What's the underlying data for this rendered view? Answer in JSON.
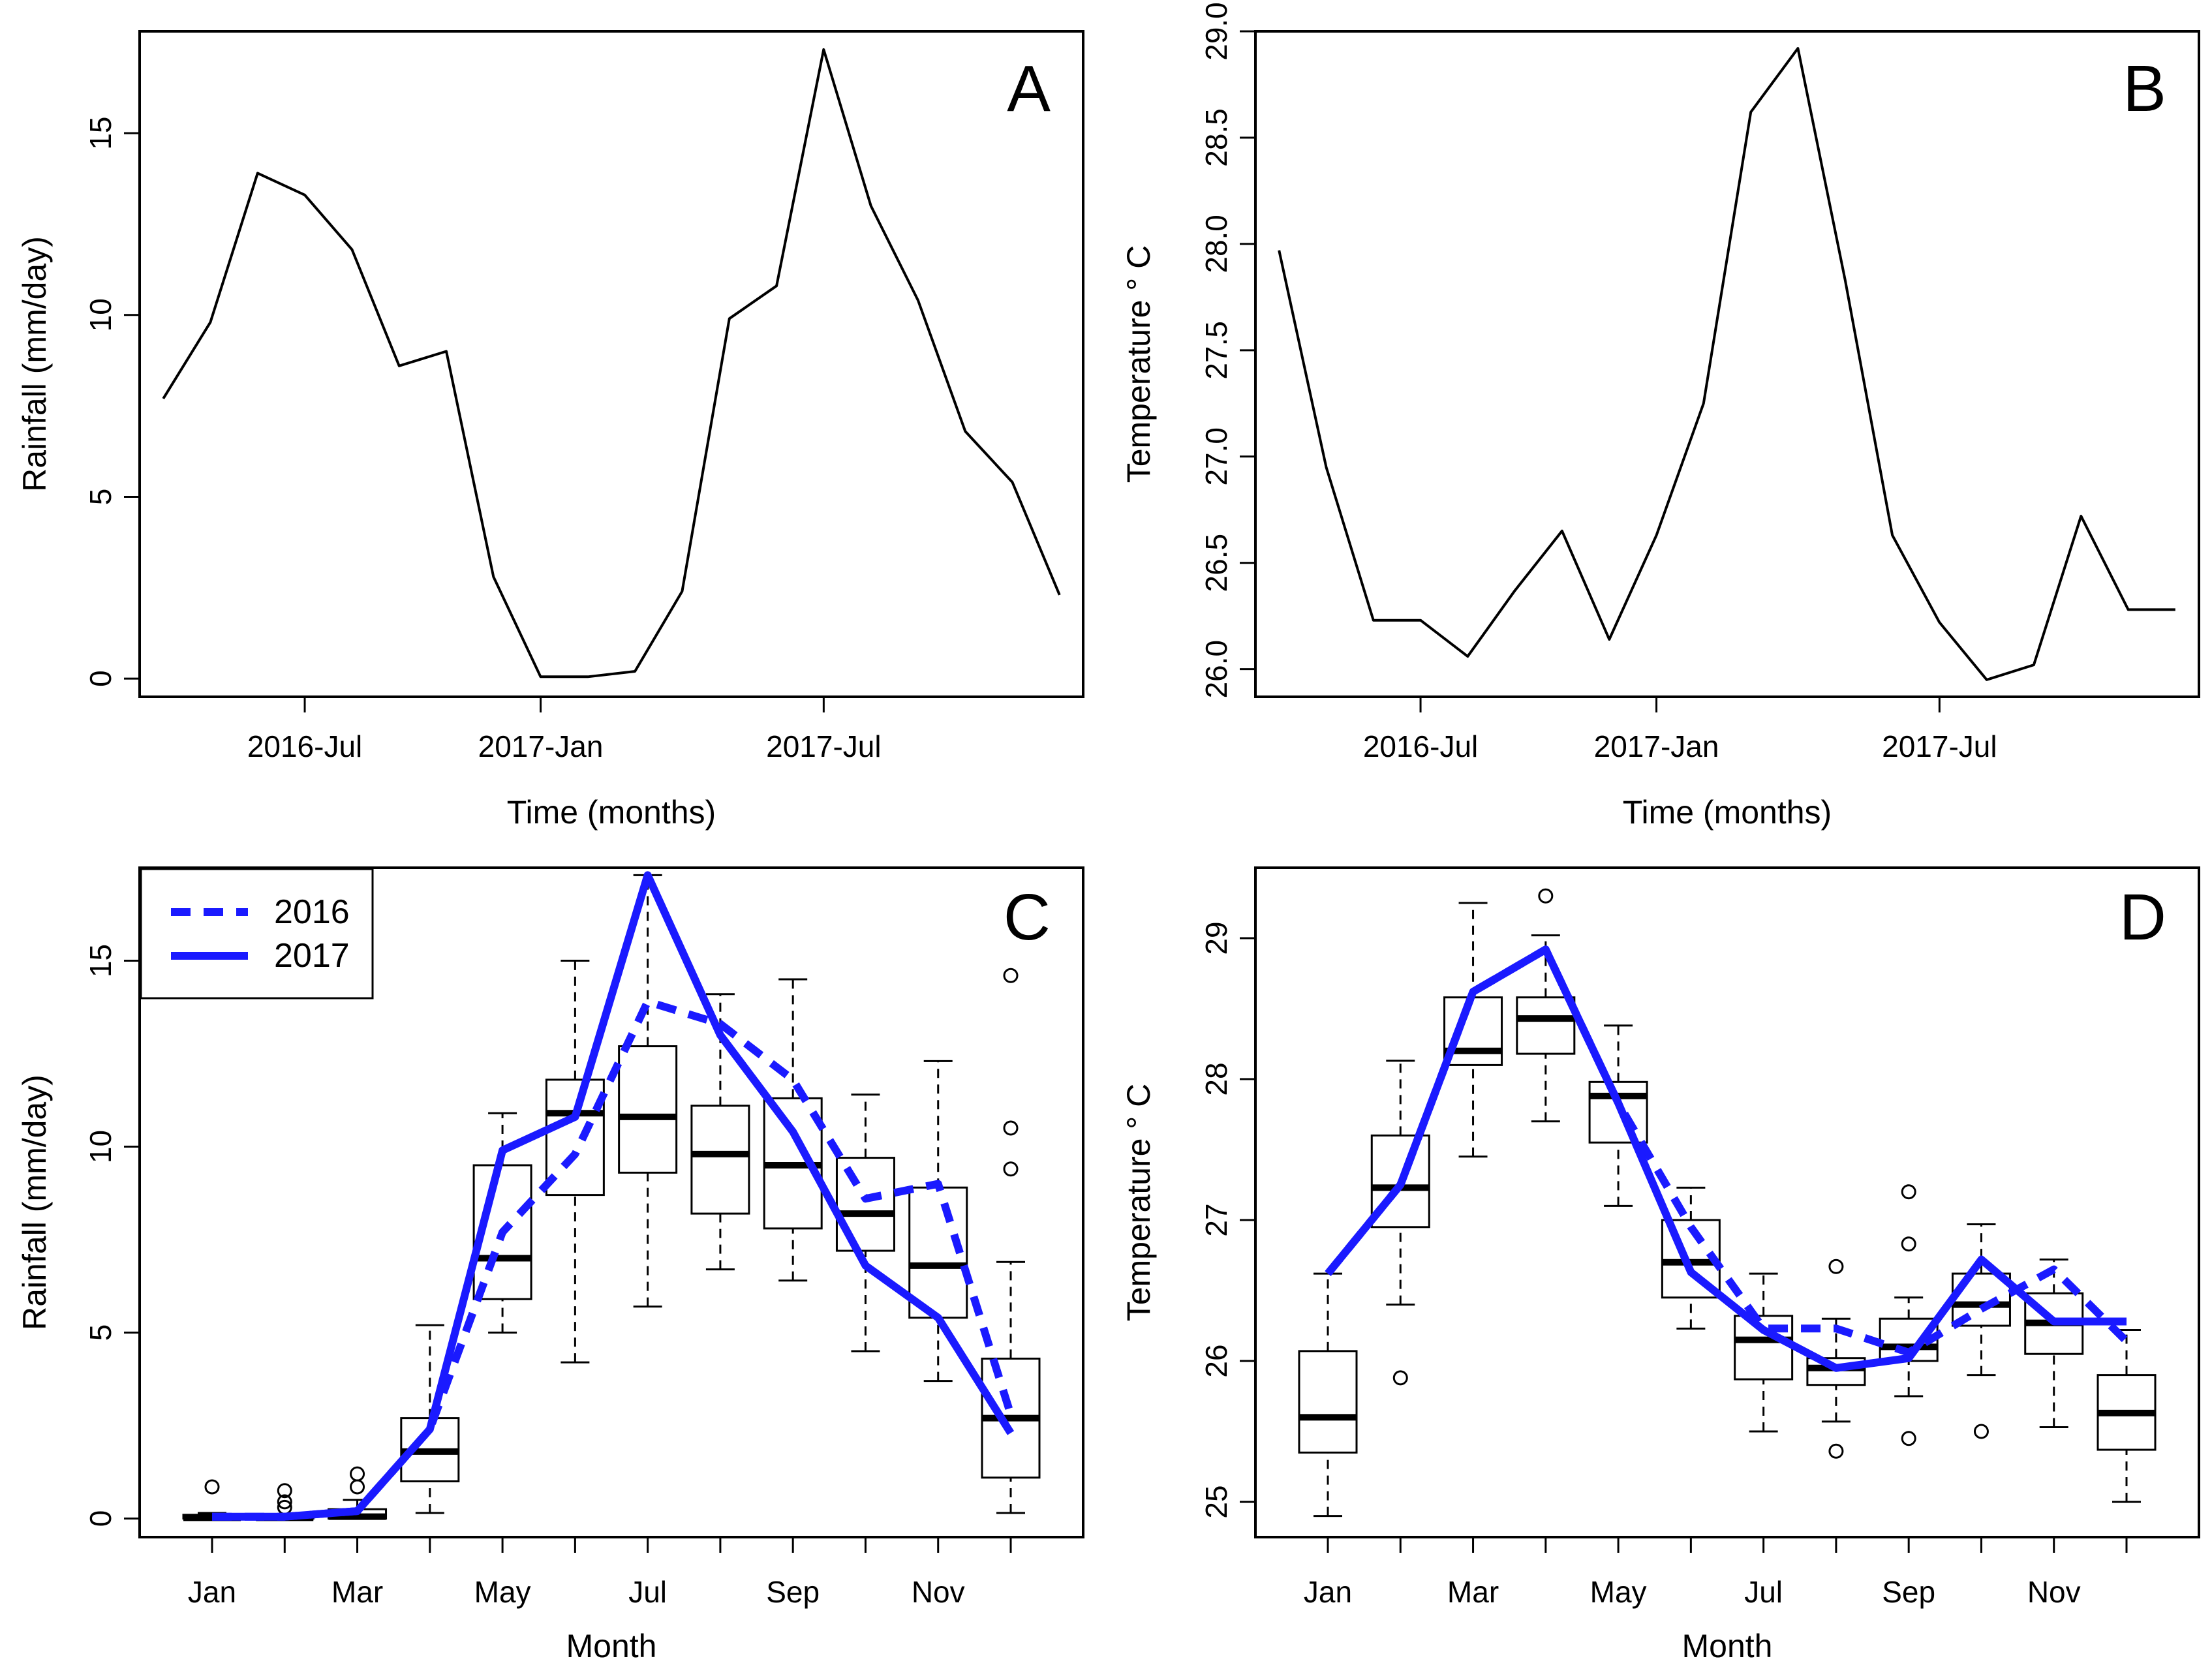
{
  "figure_labels": {
    "a": "A",
    "b": "B",
    "c": "C",
    "d": "D"
  },
  "colors": {
    "axis": "#000000",
    "series_blue": "#1a1aff",
    "box": "#000000"
  },
  "chart_data": [
    {
      "id": "A",
      "type": "line",
      "xlabel": "Time (months)",
      "ylabel": "Rainfall (mm/day)",
      "x_ticks": [
        {
          "label": "2016-Jul",
          "index": 3
        },
        {
          "label": "2017-Jan",
          "index": 8
        },
        {
          "label": "2017-Jul",
          "index": 14
        }
      ],
      "y_ticks": [
        "0",
        "5",
        "10",
        "15"
      ],
      "xlim": [
        -0.5,
        19.5
      ],
      "ylim": [
        -0.5,
        17.8
      ],
      "series": [
        {
          "name": "Rainfall",
          "values": [
            7.7,
            9.8,
            13.9,
            13.3,
            11.8,
            8.6,
            9.0,
            2.8,
            0.05,
            0.05,
            0.2,
            2.4,
            9.9,
            10.8,
            17.3,
            13.0,
            10.4,
            6.8,
            5.4,
            2.3
          ]
        }
      ]
    },
    {
      "id": "B",
      "type": "line",
      "xlabel": "Time (months)",
      "ylabel": "Temperature ° C",
      "x_ticks": [
        {
          "label": "2016-Jul",
          "index": 3
        },
        {
          "label": "2017-Jan",
          "index": 8
        },
        {
          "label": "2017-Jul",
          "index": 14
        }
      ],
      "y_ticks": [
        "26.0",
        "26.5",
        "27.0",
        "27.5",
        "28.0",
        "28.5",
        "29.0"
      ],
      "xlim": [
        -0.5,
        19.5
      ],
      "ylim": [
        25.87,
        29.0
      ],
      "series": [
        {
          "name": "Temperature",
          "values": [
            27.97,
            26.95,
            26.23,
            26.23,
            26.06,
            26.37,
            26.65,
            26.14,
            26.63,
            27.25,
            28.62,
            28.92,
            27.83,
            26.63,
            26.22,
            25.95,
            26.02,
            26.72,
            26.28,
            26.28
          ]
        }
      ]
    },
    {
      "id": "C",
      "type": "box",
      "xlabel": "Month",
      "ylabel": "Rainfall (mm/day)",
      "x_tick_labels": [
        "Jan",
        "",
        "Mar",
        "",
        "May",
        "",
        "Jul",
        "",
        "Sep",
        "",
        "Nov",
        ""
      ],
      "y_ticks": [
        "0",
        "5",
        "10",
        "15"
      ],
      "ylim": [
        -0.5,
        17.5
      ],
      "legend": [
        "2016",
        "2017"
      ],
      "boxes": [
        {
          "min": 0,
          "q1": 0,
          "med": 0.02,
          "q3": 0.1,
          "max": 0.15,
          "out": [
            0.85
          ]
        },
        {
          "min": 0,
          "q1": 0,
          "med": 0.02,
          "q3": 0.05,
          "max": 0.1,
          "out": [
            0.3,
            0.45,
            0.75
          ]
        },
        {
          "min": 0,
          "q1": 0,
          "med": 0.05,
          "q3": 0.25,
          "max": 0.5,
          "out": [
            0.85,
            1.2
          ]
        },
        {
          "min": 0.15,
          "q1": 1.0,
          "med": 1.8,
          "q3": 2.7,
          "max": 5.2,
          "out": []
        },
        {
          "min": 5.0,
          "q1": 5.9,
          "med": 7.0,
          "q3": 9.5,
          "max": 10.9,
          "out": []
        },
        {
          "min": 4.2,
          "q1": 8.7,
          "med": 10.9,
          "q3": 11.8,
          "max": 15.0,
          "out": []
        },
        {
          "min": 5.7,
          "q1": 9.3,
          "med": 10.8,
          "q3": 12.7,
          "max": 17.3,
          "out": []
        },
        {
          "min": 6.7,
          "q1": 8.2,
          "med": 9.8,
          "q3": 11.1,
          "max": 14.1,
          "out": []
        },
        {
          "min": 6.4,
          "q1": 7.8,
          "med": 9.5,
          "q3": 11.3,
          "max": 14.5,
          "out": []
        },
        {
          "min": 4.5,
          "q1": 7.2,
          "med": 8.2,
          "q3": 9.7,
          "max": 11.4,
          "out": []
        },
        {
          "min": 3.7,
          "q1": 5.4,
          "med": 6.8,
          "q3": 8.9,
          "max": 12.3,
          "out": []
        },
        {
          "min": 0.15,
          "q1": 1.1,
          "med": 2.7,
          "q3": 4.3,
          "max": 6.9,
          "out": [
            9.4,
            10.5,
            14.6
          ]
        }
      ],
      "series": [
        {
          "name": "2016",
          "style": "dashed",
          "values": [
            0.05,
            0.05,
            0.2,
            2.4,
            7.7,
            9.8,
            13.9,
            13.3,
            11.8,
            8.6,
            9.0,
            2.8
          ]
        },
        {
          "name": "2017",
          "style": "solid",
          "values": [
            0.05,
            0.05,
            0.2,
            2.4,
            9.9,
            10.8,
            17.3,
            13.0,
            10.4,
            6.8,
            5.4,
            2.3
          ]
        }
      ]
    },
    {
      "id": "D",
      "type": "box",
      "xlabel": "Month",
      "ylabel": "Temperature ° C",
      "x_tick_labels": [
        "Jan",
        "",
        "Mar",
        "",
        "May",
        "",
        "Jul",
        "",
        "Sep",
        "",
        "Nov",
        ""
      ],
      "y_ticks": [
        "25",
        "26",
        "27",
        "28",
        "29"
      ],
      "ylim": [
        24.75,
        29.5
      ],
      "boxes": [
        {
          "min": 24.9,
          "q1": 25.35,
          "med": 25.6,
          "q3": 26.07,
          "max": 26.62,
          "out": []
        },
        {
          "min": 26.4,
          "q1": 26.95,
          "med": 27.23,
          "q3": 27.6,
          "max": 28.13,
          "out": [
            25.88
          ]
        },
        {
          "min": 27.45,
          "q1": 28.1,
          "med": 28.2,
          "q3": 28.58,
          "max": 29.25,
          "out": []
        },
        {
          "min": 27.7,
          "q1": 28.18,
          "med": 28.43,
          "q3": 28.58,
          "max": 29.02,
          "out": [
            29.3
          ]
        },
        {
          "min": 27.1,
          "q1": 27.55,
          "med": 27.88,
          "q3": 27.98,
          "max": 28.38,
          "out": []
        },
        {
          "min": 26.23,
          "q1": 26.45,
          "med": 26.7,
          "q3": 27.0,
          "max": 27.23,
          "out": []
        },
        {
          "min": 25.5,
          "q1": 25.87,
          "med": 26.15,
          "q3": 26.32,
          "max": 26.62,
          "out": []
        },
        {
          "min": 25.57,
          "q1": 25.83,
          "med": 25.95,
          "q3": 26.02,
          "max": 26.3,
          "out": [
            25.36,
            26.67
          ]
        },
        {
          "min": 25.75,
          "q1": 26.0,
          "med": 26.1,
          "q3": 26.3,
          "max": 26.45,
          "out": [
            25.45,
            26.83,
            27.2
          ]
        },
        {
          "min": 25.9,
          "q1": 26.25,
          "med": 26.4,
          "q3": 26.62,
          "max": 26.97,
          "out": [
            25.5
          ]
        },
        {
          "min": 25.53,
          "q1": 26.05,
          "med": 26.27,
          "q3": 26.48,
          "max": 26.72,
          "out": []
        },
        {
          "min": 25.0,
          "q1": 25.37,
          "med": 25.63,
          "q3": 25.9,
          "max": 26.22,
          "out": []
        }
      ],
      "series": [
        {
          "name": "2016",
          "style": "dashed",
          "values": [
            26.62,
            27.25,
            28.62,
            28.92,
            27.83,
            26.95,
            26.23,
            26.23,
            26.06,
            26.37,
            26.65,
            26.14
          ]
        },
        {
          "name": "2017",
          "style": "solid",
          "values": [
            26.62,
            27.25,
            28.62,
            28.92,
            27.83,
            26.63,
            26.22,
            25.95,
            26.02,
            26.72,
            26.28,
            26.28
          ]
        }
      ]
    }
  ]
}
